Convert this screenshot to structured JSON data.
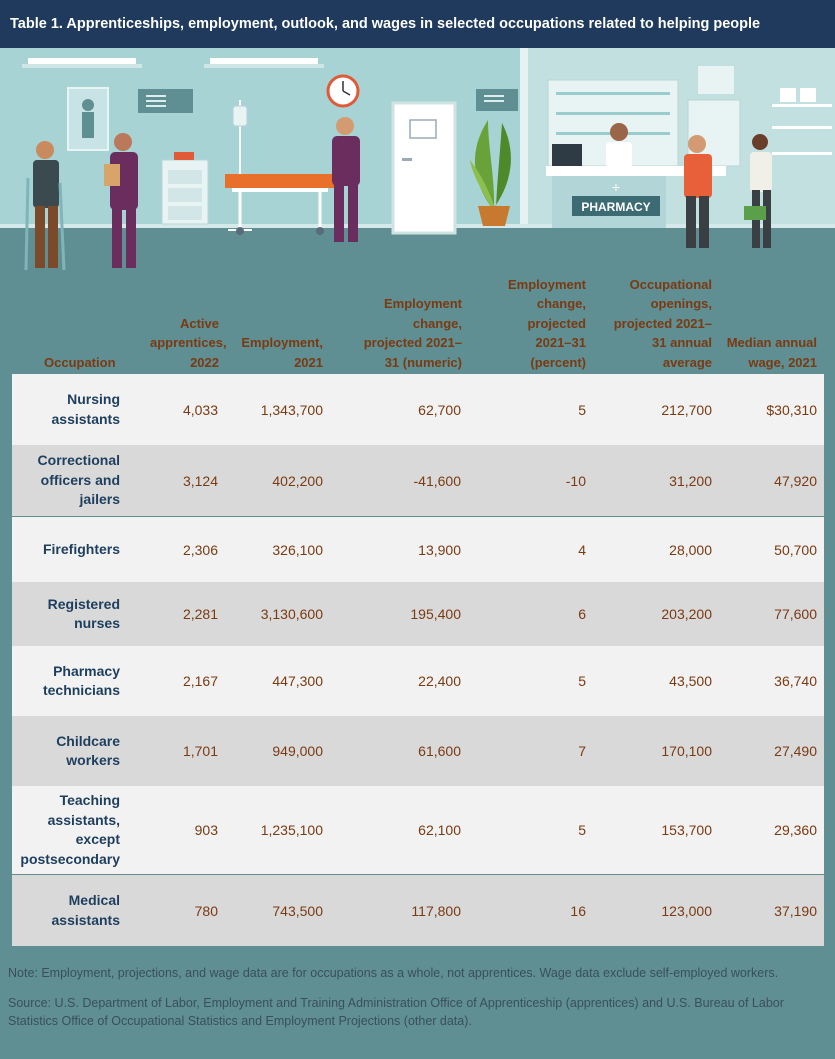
{
  "title": "Table 1. Apprenticeships, employment, outlook, and wages in selected occupations related to helping people",
  "illustration": {
    "pharmacy_sign": "PHARMACY",
    "icons": [
      "hospital-scene",
      "doctor-with-crutches-figure",
      "nurse-with-clipboard-figure",
      "wall-clock-icon",
      "hospital-bed-icon",
      "iv-stand-icon",
      "nurse-standing-figure",
      "door-icon",
      "potted-plant-icon",
      "pharmacist-figure",
      "customer-figure",
      "shopper-with-basket-figure"
    ]
  },
  "headers": {
    "occupation": "Occupation",
    "apprentices": "Active apprentices, 2022",
    "employment": "Employment, 2021",
    "change_numeric": "Employment change, projected 2021–31 (numeric)",
    "change_percent": "Employment change, projected 2021–31 (percent)",
    "openings": "Occupational openings, projected 2021–31 annual average",
    "wage": "Median annual wage, 2021"
  },
  "rows": [
    {
      "occupation": "Nursing assistants",
      "apprentices": "4,033",
      "employment": "1,343,700",
      "change_numeric": "62,700",
      "change_percent": "5",
      "openings": "212,700",
      "wage": "$30,310"
    },
    {
      "occupation": "Correctional officers and jailers",
      "apprentices": "3,124",
      "employment": "402,200",
      "change_numeric": "-41,600",
      "change_percent": "-10",
      "openings": "31,200",
      "wage": "47,920"
    },
    {
      "occupation": "Firefighters",
      "apprentices": "2,306",
      "employment": "326,100",
      "change_numeric": "13,900",
      "change_percent": "4",
      "openings": "28,000",
      "wage": "50,700"
    },
    {
      "occupation": "Registered nurses",
      "apprentices": "2,281",
      "employment": "3,130,600",
      "change_numeric": "195,400",
      "change_percent": "6",
      "openings": "203,200",
      "wage": "77,600"
    },
    {
      "occupation": "Pharmacy technicians",
      "apprentices": "2,167",
      "employment": "447,300",
      "change_numeric": "22,400",
      "change_percent": "5",
      "openings": "43,500",
      "wage": "36,740"
    },
    {
      "occupation": "Childcare workers",
      "apprentices": "1,701",
      "employment": "949,000",
      "change_numeric": "61,600",
      "change_percent": "7",
      "openings": "170,100",
      "wage": "27,490"
    },
    {
      "occupation": "Teaching assistants, except postsecondary",
      "apprentices": "903",
      "employment": "1,235,100",
      "change_numeric": "62,100",
      "change_percent": "5",
      "openings": "153,700",
      "wage": "29,360"
    },
    {
      "occupation": "Medical assistants",
      "apprentices": "780",
      "employment": "743,500",
      "change_numeric": "117,800",
      "change_percent": "16",
      "openings": "123,000",
      "wage": "37,190"
    }
  ],
  "footer": {
    "note": "Note: Employment, projections, and wage data are for occupations as a whole, not apprentices. Wage data exclude self-employed workers.",
    "source": "Source: U.S. Department of Labor, Employment and Training Administration Office of Apprenticeship (apprentices) and U.S. Bureau of Labor Statistics Office of Occupational Statistics and Employment Projections (other data)."
  },
  "colors": {
    "title_bg": "#1f3a5c",
    "background": "#5f8f92",
    "header_text": "#7a3a12",
    "occupation_text": "#1e3e5e",
    "row_light": "#f2f2f2",
    "row_dark": "#d9d9d9"
  }
}
